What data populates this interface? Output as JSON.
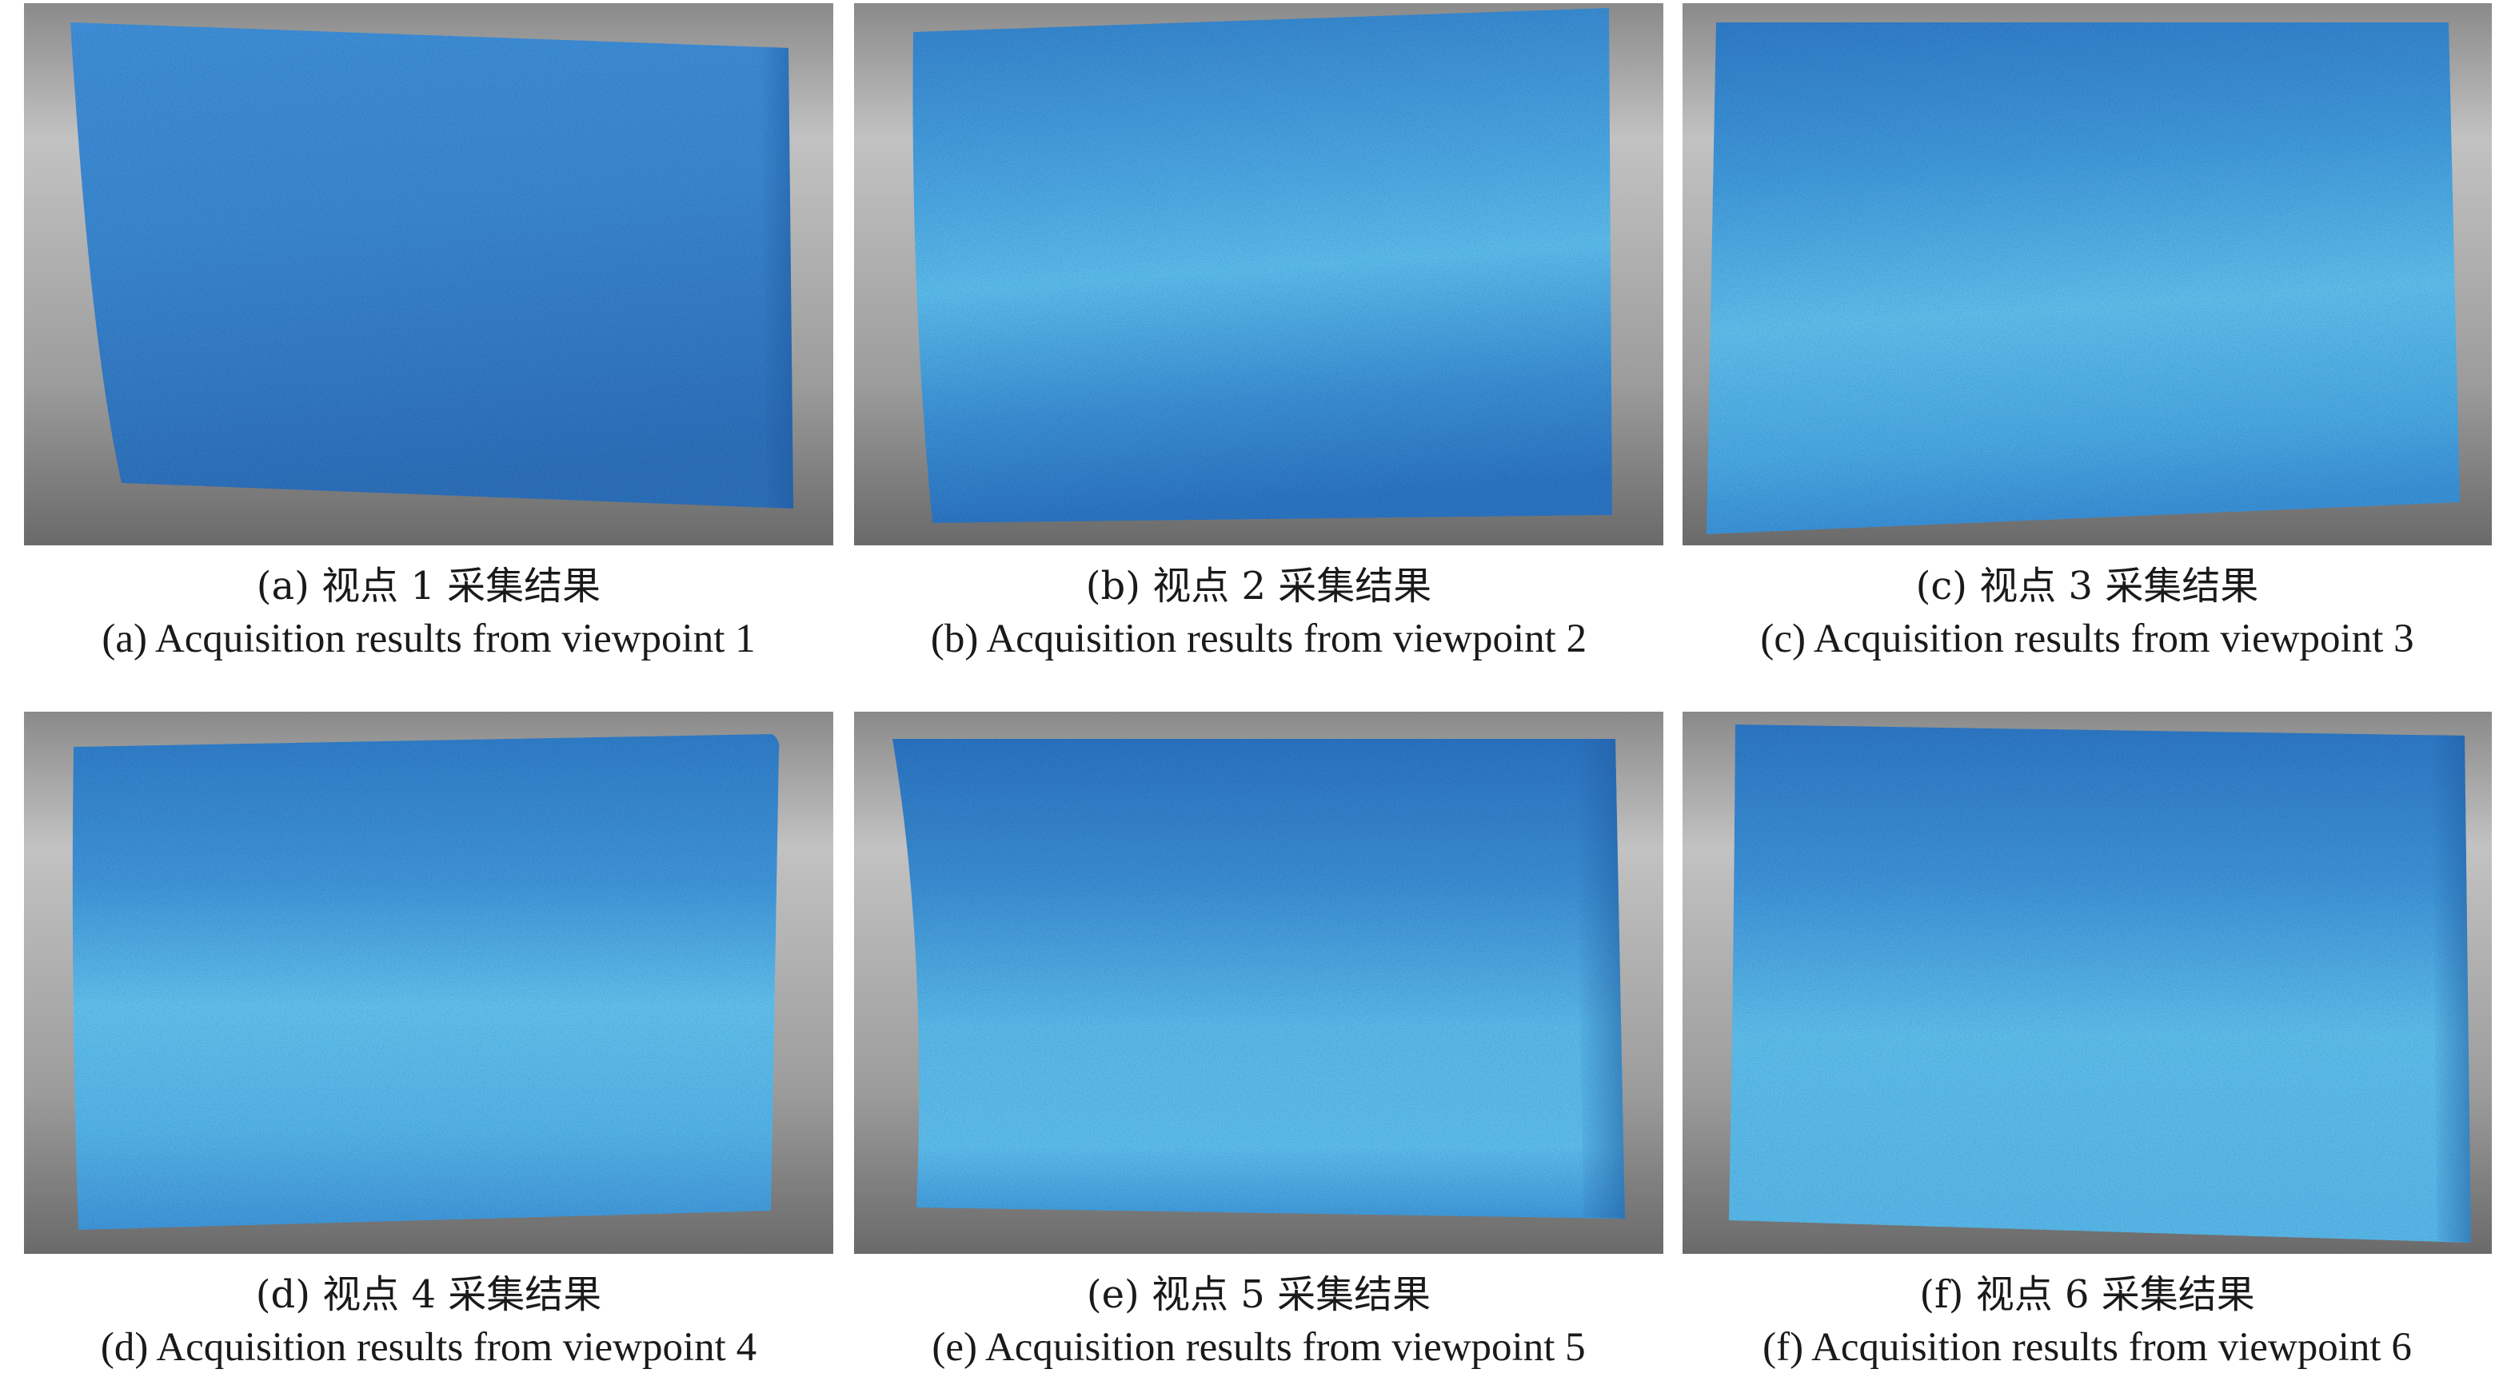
{
  "figure": {
    "panels": [
      {
        "caption_cn": "(a) 视点 1 采集结果",
        "caption_en": "(a) Acquisition results from viewpoint 1"
      },
      {
        "caption_cn": "(b) 视点 2 采集结果",
        "caption_en": "(b) Acquisition results from viewpoint 2"
      },
      {
        "caption_cn": "(c) 视点 3 采集结果",
        "caption_en": "(c) Acquisition results from viewpoint 3"
      },
      {
        "caption_cn": "(d) 视点 4 采集结果",
        "caption_en": "(d) Acquisition results from viewpoint 4"
      },
      {
        "caption_cn": "(e) 视点 5 采集结果",
        "caption_en": "(e) Acquisition results from viewpoint 5"
      },
      {
        "caption_cn": "(f) 视点 6 采集结果",
        "caption_en": "(f) Acquisition results from viewpoint 6"
      }
    ],
    "colors": {
      "background_light": "#b9b9b9",
      "background_dark": "#6f6f6f",
      "surface_dark": "#2f78c4",
      "surface_light": "#5cb8e8"
    }
  }
}
